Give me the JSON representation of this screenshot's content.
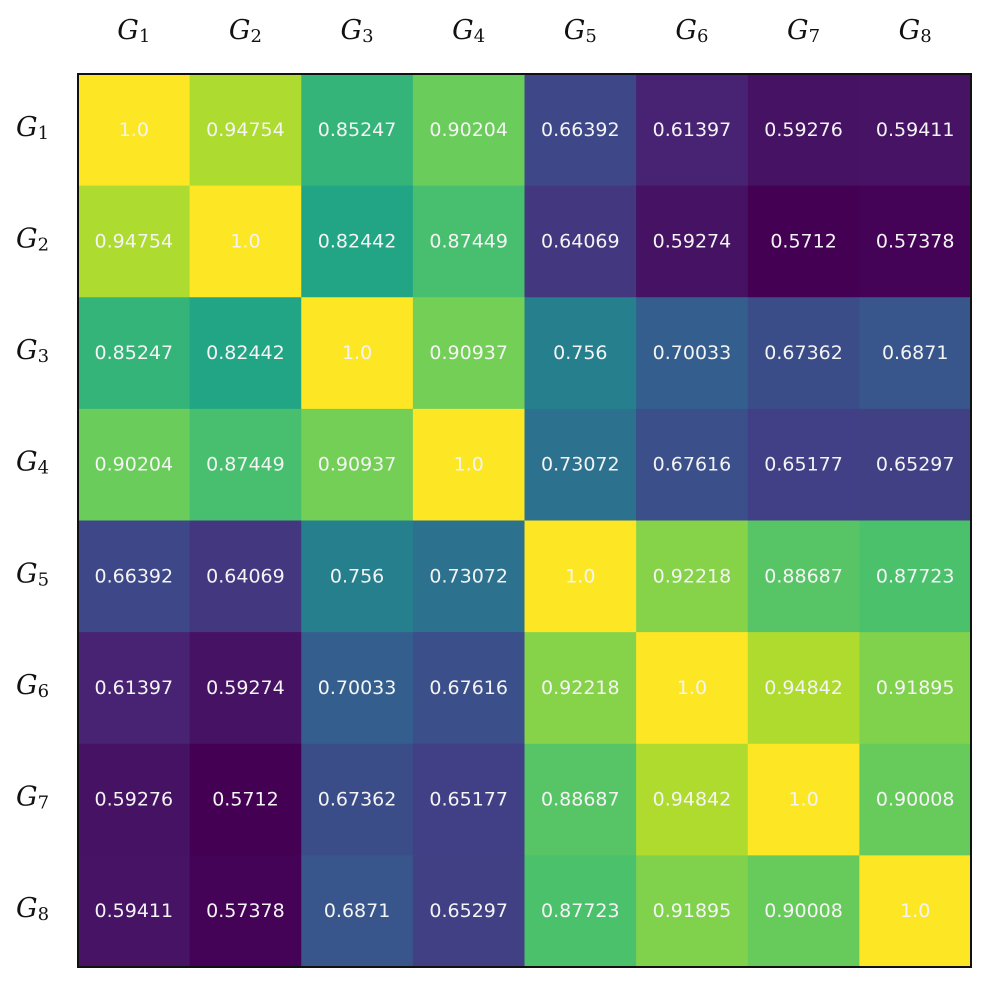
{
  "chart_data": {
    "type": "heatmap",
    "title": "",
    "xlabel": "",
    "ylabel": "",
    "x_tick_labels": [
      {
        "base": "G",
        "sub": "1"
      },
      {
        "base": "G",
        "sub": "2"
      },
      {
        "base": "G",
        "sub": "3"
      },
      {
        "base": "G",
        "sub": "4"
      },
      {
        "base": "G",
        "sub": "5"
      },
      {
        "base": "G",
        "sub": "6"
      },
      {
        "base": "G",
        "sub": "7"
      },
      {
        "base": "G",
        "sub": "8"
      }
    ],
    "y_tick_labels": [
      {
        "base": "G",
        "sub": "1"
      },
      {
        "base": "G",
        "sub": "2"
      },
      {
        "base": "G",
        "sub": "3"
      },
      {
        "base": "G",
        "sub": "4"
      },
      {
        "base": "G",
        "sub": "5"
      },
      {
        "base": "G",
        "sub": "6"
      },
      {
        "base": "G",
        "sub": "7"
      },
      {
        "base": "G",
        "sub": "8"
      }
    ],
    "x_axis_position": "top",
    "colormap": "viridis",
    "value_range": [
      0.5712,
      1.0
    ],
    "grid": false,
    "legend": "none",
    "values": [
      [
        "1.0",
        "0.94754",
        "0.85247",
        "0.90204",
        "0.66392",
        "0.61397",
        "0.59276",
        "0.59411"
      ],
      [
        "0.94754",
        "1.0",
        "0.82442",
        "0.87449",
        "0.64069",
        "0.59274",
        "0.5712",
        "0.57378"
      ],
      [
        "0.85247",
        "0.82442",
        "1.0",
        "0.90937",
        "0.756",
        "0.70033",
        "0.67362",
        "0.6871"
      ],
      [
        "0.90204",
        "0.87449",
        "0.90937",
        "1.0",
        "0.73072",
        "0.67616",
        "0.65177",
        "0.65297"
      ],
      [
        "0.66392",
        "0.64069",
        "0.756",
        "0.73072",
        "1.0",
        "0.92218",
        "0.88687",
        "0.87723"
      ],
      [
        "0.61397",
        "0.59274",
        "0.70033",
        "0.67616",
        "0.92218",
        "1.0",
        "0.94842",
        "0.91895"
      ],
      [
        "0.59276",
        "0.5712",
        "0.67362",
        "0.65177",
        "0.88687",
        "0.94842",
        "1.0",
        "0.90008"
      ],
      [
        "0.59411",
        "0.57378",
        "0.6871",
        "0.65297",
        "0.87723",
        "0.91895",
        "0.90008",
        "1.0"
      ]
    ]
  }
}
